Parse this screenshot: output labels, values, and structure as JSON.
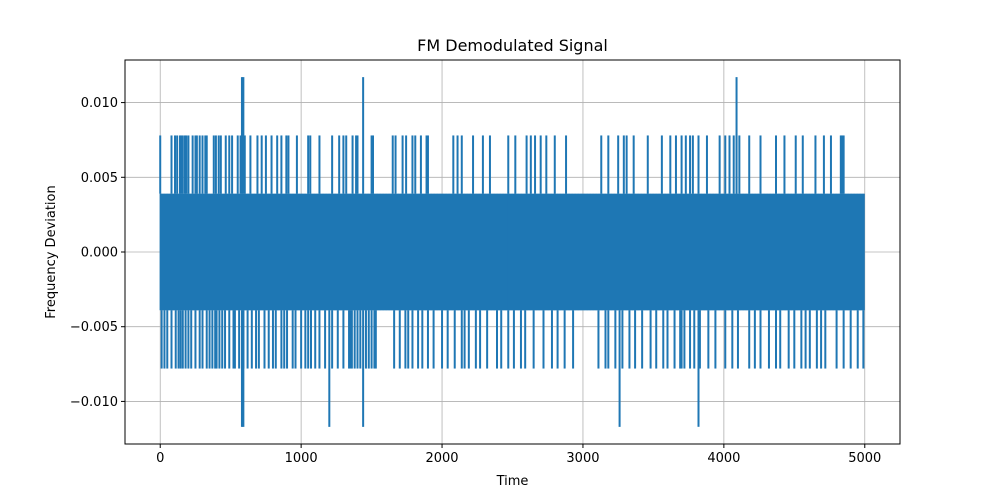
{
  "chart_data": {
    "type": "line",
    "title": "FM Demodulated Signal",
    "xlabel": "Time",
    "ylabel": "Frequency Deviation",
    "xlim": [
      -250,
      5250
    ],
    "ylim": [
      -0.01285,
      0.01285
    ],
    "xticks": [
      0,
      1000,
      2000,
      3000,
      4000,
      5000
    ],
    "xtick_labels": [
      "0",
      "1000",
      "2000",
      "3000",
      "4000",
      "5000"
    ],
    "yticks": [
      -0.01,
      -0.005,
      0.0,
      0.005,
      0.01
    ],
    "ytick_labels": [
      "−0.010",
      "−0.005",
      "0.000",
      "0.005",
      "0.010"
    ],
    "grid": true,
    "series": [
      {
        "color": "#1f77b4",
        "x_range": [
          0,
          5000
        ],
        "base_levels": [
          -0.0039,
          0.0039
        ],
        "spike_levels": [
          -0.0078,
          0.0078
        ],
        "extreme_levels": [
          -0.0117,
          0.0117
        ],
        "positive_spikes_x": [
          0,
          80,
          105,
          120,
          140,
          150,
          160,
          175,
          185,
          200,
          230,
          250,
          260,
          280,
          300,
          320,
          330,
          380,
          395,
          415,
          430,
          465,
          490,
          510,
          550,
          570,
          600,
          640,
          690,
          720,
          750,
          790,
          830,
          860,
          895,
          910,
          970,
          1050,
          1065,
          1130,
          1220,
          1270,
          1300,
          1320,
          1365,
          1390,
          1400,
          1500,
          1510,
          1650,
          1670,
          1720,
          1745,
          1790,
          1810,
          1850,
          1890,
          1900,
          2080,
          2110,
          2140,
          2220,
          2290,
          2340,
          2470,
          2520,
          2600,
          2630,
          2660,
          2700,
          2740,
          2800,
          2880,
          3130,
          3180,
          3250,
          3290,
          3310,
          3360,
          3460,
          3560,
          3620,
          3660,
          3700,
          3730,
          3760,
          3780,
          3820,
          3880,
          3970,
          4010,
          4040,
          4070,
          4090,
          4110,
          4180,
          4260,
          4370,
          4430,
          4510,
          4560,
          4650,
          4710,
          4760,
          4830,
          4840,
          4850
        ],
        "negative_spikes_x": [
          10,
          30,
          50,
          80,
          110,
          130,
          145,
          160,
          180,
          200,
          220,
          250,
          280,
          300,
          330,
          350,
          370,
          390,
          400,
          420,
          440,
          460,
          490,
          520,
          530,
          560,
          590,
          620,
          650,
          680,
          700,
          740,
          770,
          800,
          820,
          860,
          880,
          900,
          940,
          960,
          1000,
          1030,
          1050,
          1070,
          1100,
          1130,
          1170,
          1220,
          1260,
          1300,
          1340,
          1350,
          1360,
          1380,
          1400,
          1420,
          1460,
          1480,
          1500,
          1520,
          1530,
          1660,
          1700,
          1740,
          1760,
          1790,
          1830,
          1860,
          1900,
          1940,
          2000,
          2040,
          2090,
          2140,
          2160,
          2190,
          2240,
          2270,
          2320,
          2390,
          2420,
          2470,
          2510,
          2560,
          2590,
          2650,
          2720,
          2780,
          2820,
          2870,
          2930,
          3110,
          3160,
          3180,
          3230,
          3280,
          3330,
          3370,
          3420,
          3480,
          3520,
          3570,
          3600,
          3650,
          3690,
          3700,
          3720,
          3760,
          3790,
          3830,
          3890,
          3940,
          4010,
          4060,
          4100,
          4180,
          4220,
          4260,
          4320,
          4370,
          4400,
          4460,
          4500,
          4550,
          4580,
          4610,
          4660,
          4690,
          4720,
          4800,
          4850,
          4900,
          4950,
          4990
        ],
        "positive_extreme_x": [
          580,
          590,
          1440,
          4090
        ],
        "negative_extreme_x": [
          580,
          590,
          1200,
          1440,
          3260,
          3820
        ]
      }
    ]
  }
}
